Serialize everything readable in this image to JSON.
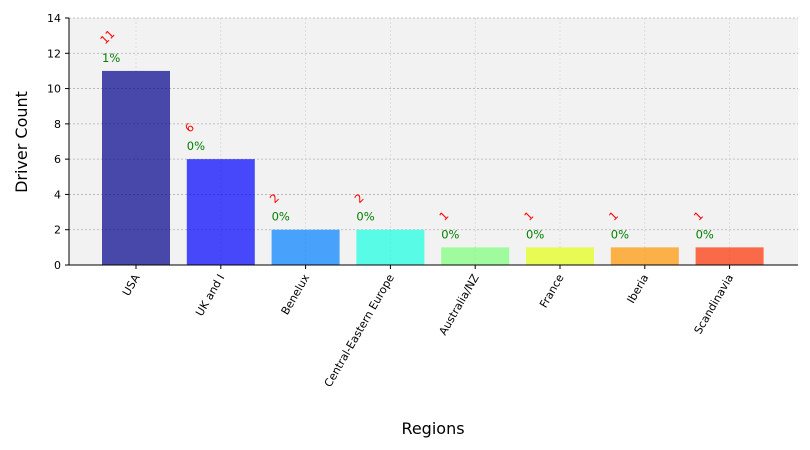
{
  "chart_data": {
    "type": "bar",
    "title": "",
    "xlabel": "Regions",
    "ylabel": "Driver Count",
    "categories": [
      "USA",
      "UK and I",
      "Benelux",
      "Central-Eastern Europe",
      "Australia/NZ",
      "France",
      "Iberia",
      "Scandinavia"
    ],
    "values": [
      11,
      6,
      2,
      2,
      1,
      1,
      1,
      1
    ],
    "count_labels": [
      "11",
      "6",
      "2",
      "2",
      "1",
      "1",
      "1",
      "1"
    ],
    "percent_labels": [
      "1%",
      "0%",
      "0%",
      "0%",
      "0%",
      "0%",
      "0%",
      "0%"
    ],
    "bar_colors": [
      "#00008b",
      "#0000ff",
      "#0080ff",
      "#15ffe1",
      "#7dff7a",
      "#e4ff13",
      "#ff9400",
      "#ff3000"
    ],
    "bar_opacity": 0.7,
    "count_label_color": "#ff0000",
    "percent_label_color": "#008000",
    "plot_background": "#f2f2f2",
    "ylim": [
      0,
      14
    ],
    "yticks": [
      0,
      2,
      4,
      6,
      8,
      10,
      12,
      14
    ],
    "grid": true
  }
}
